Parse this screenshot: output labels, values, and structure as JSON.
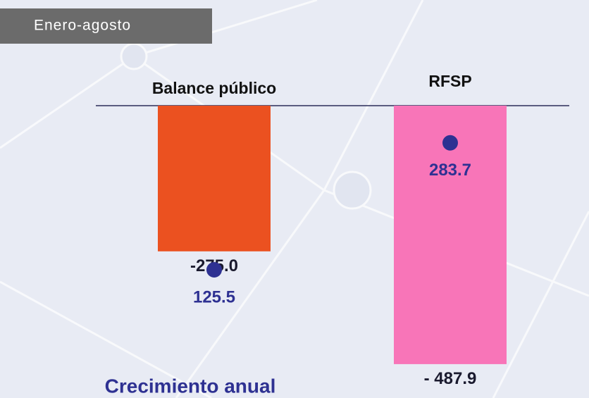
{
  "chart_data": {
    "type": "bar",
    "title": "Enero-agosto",
    "categories": [
      "Balance público",
      "RFSP"
    ],
    "ylim": [
      -500,
      0
    ],
    "y2lim": [
      0,
      330
    ],
    "series": [
      {
        "values": [
          -275.0,
          -487.9
        ],
        "value_labels": [
          "-275.0",
          "- 487.9"
        ],
        "colors": [
          "#eb5120",
          "#f875b8"
        ]
      },
      {
        "name": "Crecimiento anual",
        "type": "scatter",
        "axis": "y2",
        "color": "#2e3192",
        "values": [
          125.5,
          283.7
        ]
      }
    ]
  }
}
